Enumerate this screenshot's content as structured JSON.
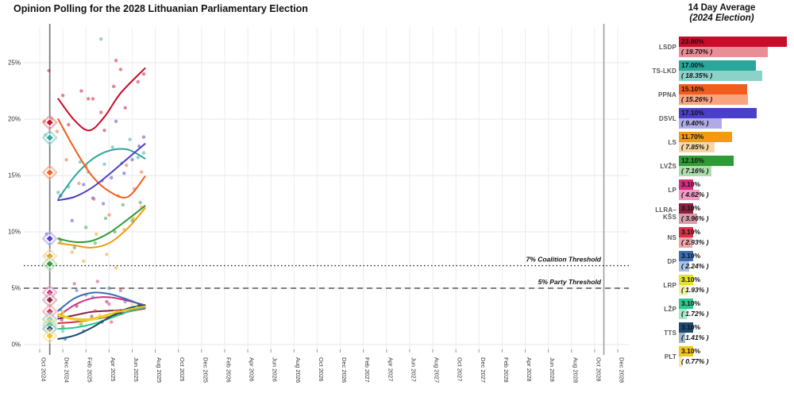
{
  "title": "Opinion Polling for the 2028 Lithuanian Parliamentary Election",
  "side_panel": {
    "title": "14 Day Average",
    "subtitle": "(2024 Election)"
  },
  "chart_data": {
    "type": "line",
    "title": "Opinion Polling for the 2028 Lithuanian Parliamentary Election",
    "xlabel": "",
    "ylabel": "",
    "ylim": [
      0,
      28
    ],
    "grid": true,
    "x_tick_labels": [
      "Oct 2024",
      "Dec 2024",
      "Feb 2025",
      "Apr 2025",
      "Jun 2025",
      "Aug 2025",
      "Oct 2025",
      "Dec 2025",
      "Feb 2026",
      "Apr 2026",
      "Jun 2026",
      "Aug 2026",
      "Oct 2026",
      "Dec 2026",
      "Feb 2027",
      "Apr 2027",
      "Jun 2027",
      "Aug 2027",
      "Oct 2027",
      "Dec 2027",
      "Feb 2028",
      "Apr 2028",
      "Jun 2028",
      "Aug 2028",
      "Oct 2028",
      "Dec 2028"
    ],
    "x_tick_months": [
      0,
      2,
      4,
      6,
      8,
      10,
      12,
      14,
      16,
      18,
      20,
      22,
      24,
      26,
      28,
      30,
      32,
      34,
      36,
      38,
      40,
      42,
      44,
      46,
      48,
      50
    ],
    "y_tick_labels": [
      "0%",
      "5%",
      "10%",
      "15%",
      "20%",
      "25%"
    ],
    "y_tick_values": [
      0,
      5,
      10,
      15,
      20,
      25
    ],
    "thresholds": [
      {
        "value": 7,
        "label": "7% Coalition Threshold",
        "style": "dotted",
        "color": "#222222"
      },
      {
        "value": 5,
        "label": "5% Party Threshold",
        "style": "dashed",
        "color": "#555555"
      }
    ],
    "election_lines": [
      {
        "x_month": 0.87,
        "color": "#777777",
        "width": 1.7
      },
      {
        "x_month": 48.8,
        "color": "#999999",
        "width": 1.5
      }
    ],
    "series": [
      {
        "name": "LSDP",
        "color": "#c90c2a",
        "color_light": "#ea8e96",
        "avg": 23.8,
        "avg_label": "23.80%",
        "election": 19.7,
        "election_label": "( 19.70% )",
        "trend": [
          [
            1.6,
            21.8
          ],
          [
            3,
            19.9
          ],
          [
            4.3,
            19.0
          ],
          [
            5.6,
            20.2
          ],
          [
            7,
            22.3
          ],
          [
            9.1,
            24.5
          ]
        ],
        "points": [
          [
            0.8,
            24.3
          ],
          [
            1,
            20.0
          ],
          [
            2,
            22.1
          ],
          [
            2.5,
            19.5
          ],
          [
            3.6,
            22.5
          ],
          [
            4.2,
            21.8
          ],
          [
            4.6,
            21.8
          ],
          [
            5.3,
            20.6
          ],
          [
            5.6,
            19.0
          ],
          [
            6.4,
            22.9
          ],
          [
            6.6,
            25.2
          ],
          [
            7,
            24.4
          ],
          [
            7.4,
            21.0
          ],
          [
            8.5,
            23.3
          ],
          [
            9,
            24.0
          ]
        ]
      },
      {
        "name": "TS-LKD",
        "color": "#2aa79b",
        "color_light": "#8bd2c9",
        "avg": 17.0,
        "avg_label": "17.00%",
        "election": 18.35,
        "election_label": "( 18.35% )",
        "trend": [
          [
            1.6,
            12.9
          ],
          [
            3,
            14.9
          ],
          [
            4.5,
            16.4
          ],
          [
            6,
            17.2
          ],
          [
            7.6,
            17.3
          ],
          [
            9.1,
            16.5
          ]
        ],
        "points": [
          [
            0.5,
            18.6
          ],
          [
            1.6,
            13.5
          ],
          [
            2.5,
            14.0
          ],
          [
            3.5,
            16.2
          ],
          [
            4.2,
            15.3
          ],
          [
            5.3,
            27.1
          ],
          [
            5.6,
            16.0
          ],
          [
            6.3,
            17.5
          ],
          [
            7.1,
            16.1
          ],
          [
            7.8,
            18.2
          ],
          [
            8.5,
            16.6
          ],
          [
            9,
            17.0
          ]
        ]
      },
      {
        "name": "PPNA",
        "color": "#f25d1d",
        "color_light": "#f8a47f",
        "avg": 15.1,
        "avg_label": "15.10%",
        "election": 15.26,
        "election_label": "( 15.26% )",
        "trend": [
          [
            1.6,
            20.0
          ],
          [
            3,
            17.4
          ],
          [
            4.5,
            15.0
          ],
          [
            6,
            13.6
          ],
          [
            7.6,
            13.1
          ],
          [
            9.1,
            14.9
          ]
        ],
        "points": [
          [
            0.4,
            19.8
          ],
          [
            1.5,
            18.9
          ],
          [
            2.3,
            16.4
          ],
          [
            3.4,
            14.3
          ],
          [
            4,
            15.8
          ],
          [
            4.7,
            12.9
          ],
          [
            5.4,
            14.5
          ],
          [
            6,
            11.5
          ],
          [
            6.8,
            13.2
          ],
          [
            7.5,
            15.9
          ],
          [
            8.2,
            13.8
          ],
          [
            8.8,
            15.3
          ]
        ]
      },
      {
        "name": "DSVL",
        "color": "#4a3fc8",
        "color_light": "#b0abe8",
        "avg": 17.1,
        "avg_label": "17.10%",
        "election": 9.4,
        "election_label": "( 9.40% )",
        "trend": [
          [
            1.6,
            12.8
          ],
          [
            3,
            13.1
          ],
          [
            4.5,
            13.9
          ],
          [
            6,
            15.1
          ],
          [
            7.6,
            16.5
          ],
          [
            9.1,
            17.8
          ]
        ],
        "points": [
          [
            0.6,
            9.8
          ],
          [
            1.8,
            13.2
          ],
          [
            2.8,
            11.0
          ],
          [
            3.8,
            14.2
          ],
          [
            4.6,
            13.0
          ],
          [
            5.5,
            12.5
          ],
          [
            6.2,
            14.8
          ],
          [
            6.6,
            19.8
          ],
          [
            7.3,
            15.2
          ],
          [
            8,
            16.4
          ],
          [
            8.6,
            17.6
          ],
          [
            9,
            18.4
          ]
        ]
      },
      {
        "name": "LS",
        "color": "#f39b0e",
        "color_light": "#f6d7a4",
        "avg": 11.7,
        "avg_label": "11.70%",
        "election": 7.85,
        "election_label": "( 7.85% )",
        "trend": [
          [
            1.6,
            9.0
          ],
          [
            3,
            8.8
          ],
          [
            4.5,
            8.6
          ],
          [
            6,
            9.0
          ],
          [
            7.6,
            10.3
          ],
          [
            9.1,
            12.1
          ]
        ],
        "points": [
          [
            0.6,
            7.9
          ],
          [
            1.7,
            9.4
          ],
          [
            2.8,
            8.2
          ],
          [
            3.8,
            7.4
          ],
          [
            4.9,
            9.8
          ],
          [
            5.8,
            8.0
          ],
          [
            6.6,
            6.8
          ],
          [
            7.3,
            10.2
          ],
          [
            8.1,
            11.2
          ],
          [
            8.8,
            12.2
          ]
        ]
      },
      {
        "name": "LVŽS",
        "color": "#2e9b37",
        "color_light": "#aeddad",
        "avg": 12.1,
        "avg_label": "12.10%",
        "election": 7.16,
        "election_label": "( 7.16% )",
        "trend": [
          [
            1.6,
            9.4
          ],
          [
            3,
            9.1
          ],
          [
            4.5,
            9.2
          ],
          [
            6,
            9.9
          ],
          [
            7.6,
            11.1
          ],
          [
            9.1,
            12.3
          ]
        ],
        "points": [
          [
            0.7,
            7.0
          ],
          [
            1.8,
            9.2
          ],
          [
            3,
            8.6
          ],
          [
            4,
            10.4
          ],
          [
            4.8,
            9.0
          ],
          [
            5.7,
            11.2
          ],
          [
            6.5,
            10.0
          ],
          [
            7.2,
            12.4
          ],
          [
            8,
            11.0
          ],
          [
            8.7,
            12.6
          ]
        ]
      },
      {
        "name": "LP",
        "color": "#d62d7e",
        "color_light": "#f09ac4",
        "avg": 3.1,
        "avg_label": "3.10%",
        "election": 4.62,
        "election_label": "( 4.62% )",
        "trend": [
          [
            1.6,
            2.5
          ],
          [
            3,
            3.5
          ],
          [
            4.5,
            4.1
          ],
          [
            6,
            4.2
          ],
          [
            7.6,
            3.9
          ],
          [
            9.1,
            3.5
          ]
        ],
        "points": [
          [
            1.8,
            2.6
          ],
          [
            3,
            5.4
          ],
          [
            4,
            4.4
          ],
          [
            5,
            5.6
          ],
          [
            6,
            3.6
          ],
          [
            7,
            4.8
          ],
          [
            8.5,
            3.4
          ]
        ]
      },
      {
        "name": "LLRA–KŠS",
        "color": "#8c2040",
        "color_light": "#d69cab",
        "avg": 3.1,
        "avg_label": "3.10%",
        "election": 3.96,
        "election_label": "( 3.96% )",
        "trend": [
          [
            1.6,
            2.3
          ],
          [
            3,
            2.6
          ],
          [
            4.5,
            2.9
          ],
          [
            6,
            3.0
          ],
          [
            7.6,
            3.1
          ],
          [
            9.1,
            3.3
          ]
        ],
        "points": [
          [
            1.9,
            2.2
          ],
          [
            3.2,
            3.4
          ],
          [
            4.5,
            2.5
          ],
          [
            5.8,
            3.8
          ],
          [
            7.2,
            2.8
          ],
          [
            8.6,
            3.3
          ]
        ]
      },
      {
        "name": "NS",
        "color": "#d93048",
        "color_light": "#efa3ab",
        "avg": 3.1,
        "avg_label": "3.10%",
        "election": 2.93,
        "election_label": "( 2.93% )",
        "trend": [
          [
            1.6,
            1.9
          ],
          [
            3,
            2.0
          ],
          [
            4.5,
            2.2
          ],
          [
            6,
            2.5
          ],
          [
            7.6,
            2.9
          ],
          [
            9.1,
            3.2
          ]
        ],
        "points": [
          [
            2,
            1.6
          ],
          [
            3.4,
            2.2
          ],
          [
            4.8,
            3.0
          ],
          [
            6.2,
            2.0
          ],
          [
            7.6,
            3.1
          ],
          [
            8.8,
            3.2
          ]
        ]
      },
      {
        "name": "DP",
        "color": "#3c6cb4",
        "color_light": "#a9c3e2",
        "avg": 3.1,
        "avg_label": "3.10%",
        "election": 2.24,
        "election_label": "( 2.24% )",
        "trend": [
          [
            1.6,
            3.0
          ],
          [
            3,
            4.1
          ],
          [
            4.5,
            4.6
          ],
          [
            6,
            4.5
          ],
          [
            7.6,
            4.0
          ],
          [
            9.1,
            3.4
          ]
        ],
        "points": [
          [
            1.8,
            3.1
          ],
          [
            3.2,
            4.8
          ],
          [
            4.6,
            4.2
          ],
          [
            6,
            5.0
          ],
          [
            7.4,
            3.8
          ],
          [
            8.7,
            3.4
          ]
        ]
      },
      {
        "name": "LRP",
        "color": "#e5df2e",
        "color_light": "#f3f0a8",
        "avg": 3.1,
        "avg_label": "3.10%",
        "election": 1.93,
        "election_label": "( 1.93% )",
        "trend": [
          [
            1.6,
            2.6
          ],
          [
            3,
            2.2
          ],
          [
            4.5,
            2.2
          ],
          [
            6,
            2.6
          ],
          [
            7.6,
            3.1
          ],
          [
            9.1,
            3.5
          ]
        ],
        "points": [
          [
            2,
            2.8
          ],
          [
            3.5,
            1.8
          ],
          [
            5,
            2.4
          ],
          [
            6.5,
            3.0
          ],
          [
            8,
            3.6
          ]
        ]
      },
      {
        "name": "LŽP",
        "color": "#2bc98b",
        "color_light": "#a6e8cd",
        "avg": 3.1,
        "avg_label": "3.10%",
        "election": 1.72,
        "election_label": "( 1.72% )",
        "trend": [
          [
            1.6,
            1.4
          ],
          [
            3,
            1.5
          ],
          [
            4.5,
            1.8
          ],
          [
            6,
            2.3
          ],
          [
            7.6,
            2.9
          ],
          [
            9.1,
            3.3
          ]
        ],
        "points": [
          [
            2,
            1.2
          ],
          [
            3.6,
            1.8
          ],
          [
            5.2,
            2.4
          ],
          [
            6.8,
            2.8
          ],
          [
            8.4,
            3.2
          ]
        ]
      },
      {
        "name": "TTS",
        "color": "#1b4a70",
        "color_light": "#9db6ca",
        "avg": 3.1,
        "avg_label": "3.10%",
        "election": 1.41,
        "election_label": "( 1.41% )",
        "trend": [
          [
            1.6,
            0.5
          ],
          [
            3,
            0.8
          ],
          [
            4.5,
            1.5
          ],
          [
            6,
            2.4
          ],
          [
            7.6,
            3.2
          ],
          [
            9.1,
            3.5
          ]
        ],
        "points": [
          [
            2.2,
            0.5
          ],
          [
            3.8,
            1.2
          ],
          [
            5.4,
            2.0
          ],
          [
            7,
            2.8
          ],
          [
            8.6,
            3.5
          ]
        ]
      },
      {
        "name": "PLT",
        "color": "#f4c61a",
        "color_light": "#f9e8a2",
        "avg": 3.1,
        "avg_label": "3.10%",
        "election": 0.77,
        "election_label": "( 0.77% )",
        "trend": [
          [
            1.6,
            2.7
          ],
          [
            3,
            2.3
          ],
          [
            4.5,
            2.3
          ],
          [
            6,
            2.7
          ],
          [
            7.6,
            3.1
          ],
          [
            9.1,
            3.4
          ]
        ],
        "points": [
          [
            2,
            2.9
          ],
          [
            3.6,
            2.0
          ],
          [
            5.2,
            2.6
          ],
          [
            6.8,
            3.0
          ],
          [
            8.4,
            3.3
          ]
        ]
      }
    ]
  }
}
